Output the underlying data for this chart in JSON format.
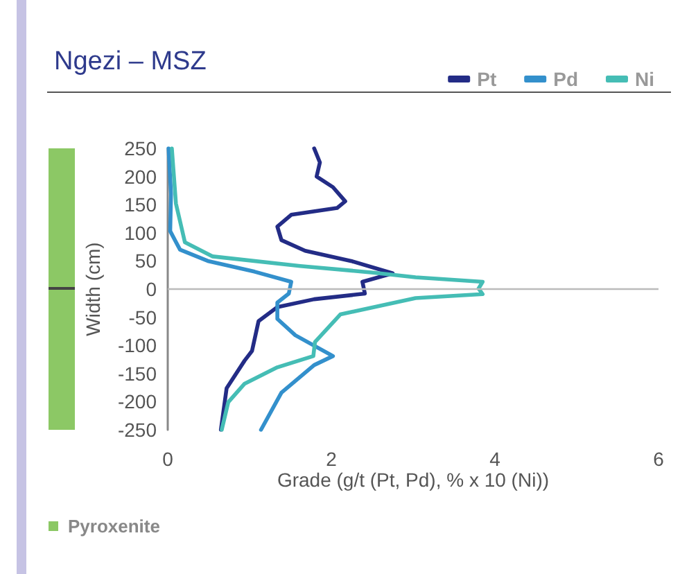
{
  "chart_data": {
    "type": "line",
    "title": "Ngezi – MSZ",
    "xlabel": "Grade (g/t (Pt, Pd), % x 10 (Ni))",
    "ylabel": "Width (cm)",
    "xlim": [
      0,
      6
    ],
    "xticks": [
      0,
      2,
      4,
      6
    ],
    "ylim": [
      -250,
      250
    ],
    "yticks": [
      -250,
      -200,
      -150,
      -100,
      -50,
      0,
      50,
      100,
      150,
      200,
      250
    ],
    "grid": false,
    "legend": "top right",
    "marker": "none",
    "line_style": "solid",
    "ref_lines": [
      {
        "axis": "y",
        "value": 0,
        "color": "#bbbbbb"
      }
    ],
    "annotations": [
      "Pyroxenite"
    ],
    "series": [
      {
        "name": "Pt",
        "color": "#232c86",
        "x": [
          1.79,
          1.86,
          1.82,
          2.02,
          2.17,
          2.07,
          1.51,
          1.34,
          1.39,
          1.68,
          2.24,
          2.75,
          2.38,
          2.41,
          1.79,
          1.34,
          1.11,
          1.03,
          0.94,
          0.72,
          0.65
        ],
        "values": [
          250,
          225,
          200,
          181,
          156,
          144,
          132,
          111,
          87,
          68,
          50,
          28,
          13,
          -8,
          -18,
          -32,
          -57,
          -110,
          -127,
          -176,
          -250
        ]
      },
      {
        "name": "Pd",
        "color": "#3390cc",
        "x": [
          0.01,
          0.04,
          0.03,
          0.15,
          0.49,
          1.06,
          1.51,
          1.48,
          1.34,
          1.34,
          1.56,
          2.02,
          1.79,
          1.39,
          1.14
        ],
        "values": [
          250,
          169,
          103,
          70,
          50,
          31,
          13,
          -8,
          -24,
          -53,
          -82,
          -119,
          -135,
          -184,
          -250
        ]
      },
      {
        "name": "Ni",
        "color": "#45bdb5",
        "x": [
          0.05,
          0.1,
          0.21,
          0.55,
          1.62,
          2.53,
          3.03,
          3.85,
          3.8,
          3.85,
          3.03,
          2.11,
          1.8,
          1.78,
          1.34,
          0.94,
          0.74,
          0.66
        ],
        "values": [
          250,
          152,
          83,
          58,
          41,
          29,
          21,
          13,
          1,
          -9,
          -16,
          -45,
          -94,
          -119,
          -139,
          -168,
          -201,
          -250
        ]
      }
    ]
  }
}
